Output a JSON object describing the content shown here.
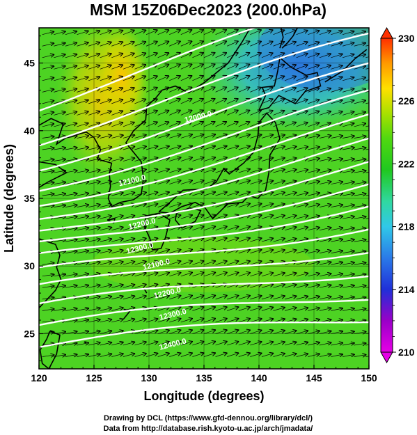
{
  "title": "MSM 15Z06Dec2023 (200.0hPa)",
  "xaxis": {
    "label": "Longitude (degrees)",
    "range": [
      120,
      150
    ],
    "ticks": [
      "120",
      "125",
      "130",
      "135",
      "140",
      "145",
      "150"
    ]
  },
  "yaxis": {
    "label": "Latitude  (degrees)",
    "range": [
      22.4,
      47.6
    ],
    "ticks": [
      "25",
      "30",
      "35",
      "40",
      "45"
    ]
  },
  "colorbar": {
    "range": [
      210,
      230
    ],
    "ticks": [
      "210",
      "214",
      "218",
      "222",
      "226",
      "230"
    ]
  },
  "colors": {
    "scale": [
      "#e600e6",
      "#9a00c8",
      "#2030d8",
      "#2a7ae8",
      "#30c8e8",
      "#30d8a0",
      "#20c820",
      "#50d810",
      "#a8e000",
      "#ffe000",
      "#ff9a00",
      "#ff3000"
    ],
    "contour": "#ffffff",
    "vector": "#000000",
    "coast": "#000000"
  },
  "credits": {
    "line1": "Drawing by DCL (https://www.gfd-dennou.org/library/dcl/)",
    "line2": "Data from http://database.rish.kyoto-u.ac.jp/arch/jmadata/"
  },
  "chart_data": {
    "type": "heatmap",
    "field": "temperature (shading) with geopotential height contours and wind vectors",
    "contour_labels": [
      {
        "text": "12000.0",
        "lon": 133.3,
        "lat": 40.6
      },
      {
        "text": "12100.0",
        "lon": 127.3,
        "lat": 35.9
      },
      {
        "text": "12200.0",
        "lon": 128.2,
        "lat": 32.7
      },
      {
        "text": "12300.0",
        "lon": 128.0,
        "lat": 30.9
      },
      {
        "text": "12100.0",
        "lon": 129.5,
        "lat": 29.7
      },
      {
        "text": "12200.0",
        "lon": 130.5,
        "lat": 27.6
      },
      {
        "text": "12300.0",
        "lon": 131.0,
        "lat": 26.0
      },
      {
        "text": "12400.0",
        "lon": 131.0,
        "lat": 23.8
      }
    ]
  }
}
